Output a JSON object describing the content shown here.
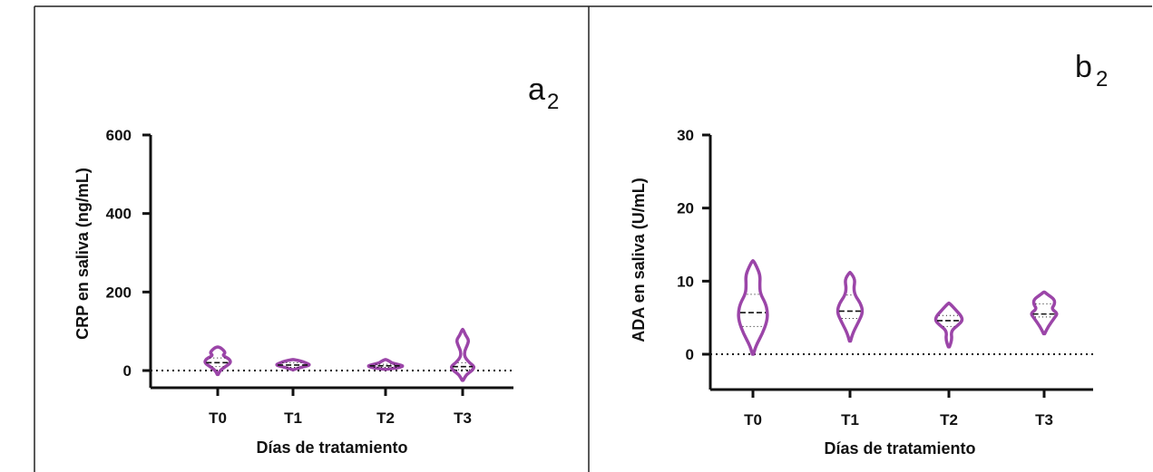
{
  "colors": {
    "violin": "#9b45a8",
    "axis": "#111111",
    "frame": "#222222"
  },
  "chart_data": [
    {
      "type": "violin",
      "panel_label": "a",
      "panel_label_sub": "2",
      "xlabel": "Días de tratamiento",
      "ylabel": "CRP en saliva (ng/mL)",
      "ylim": [
        -50,
        600
      ],
      "yticks": [
        0,
        200,
        400,
        600
      ],
      "ytick_labels": [
        "0",
        "200",
        "400",
        "600"
      ],
      "zero_reference_line": true,
      "categories": [
        "T0",
        "T1",
        "T2",
        "T3"
      ],
      "series": [
        {
          "category": "T0",
          "ymin": -10,
          "ymax": 60,
          "q1": 10,
          "median": 20,
          "q3": 32,
          "profile": [
            [
              -10,
              1
            ],
            [
              0,
              5
            ],
            [
              10,
              16
            ],
            [
              20,
              28
            ],
            [
              30,
              24
            ],
            [
              38,
              10
            ],
            [
              45,
              16
            ],
            [
              52,
              12
            ],
            [
              58,
              6
            ],
            [
              60,
              1
            ]
          ]
        },
        {
          "category": "T1",
          "ymin": 2,
          "ymax": 28,
          "q1": 8,
          "median": 14,
          "q3": 20,
          "profile": [
            [
              2,
              1
            ],
            [
              6,
              10
            ],
            [
              10,
              24
            ],
            [
              14,
              36
            ],
            [
              18,
              30
            ],
            [
              22,
              22
            ],
            [
              26,
              10
            ],
            [
              28,
              1
            ]
          ]
        },
        {
          "category": "T2",
          "ymin": 3,
          "ymax": 28,
          "q1": 8,
          "median": 12,
          "q3": 16,
          "profile": [
            [
              3,
              1
            ],
            [
              6,
              20
            ],
            [
              9,
              33
            ],
            [
              12,
              37
            ],
            [
              15,
              28
            ],
            [
              19,
              14
            ],
            [
              24,
              8
            ],
            [
              28,
              1
            ]
          ]
        },
        {
          "category": "T3",
          "ymin": -25,
          "ymax": 105,
          "q1": 2,
          "median": 10,
          "q3": 20,
          "profile": [
            [
              -25,
              1
            ],
            [
              -10,
              8
            ],
            [
              0,
              20
            ],
            [
              10,
              25
            ],
            [
              20,
              14
            ],
            [
              35,
              4
            ],
            [
              50,
              4
            ],
            [
              65,
              10
            ],
            [
              78,
              13
            ],
            [
              90,
              6
            ],
            [
              105,
              1
            ]
          ]
        }
      ]
    },
    {
      "type": "violin",
      "panel_label": "b",
      "panel_label_sub": "2",
      "xlabel": "Días de tratamiento",
      "ylabel": "ADA en saliva (U/mL)",
      "ylim": [
        -5,
        30
      ],
      "yticks": [
        0,
        10,
        20,
        30
      ],
      "ytick_labels": [
        "0",
        "10",
        "20",
        "30"
      ],
      "zero_reference_line": true,
      "categories": [
        "T0",
        "T1",
        "T2",
        "T3"
      ],
      "series": [
        {
          "category": "T0",
          "ymin": 0,
          "ymax": 12.8,
          "q1": 3.8,
          "median": 5.7,
          "q3": 8.2,
          "profile": [
            [
              0,
              1
            ],
            [
              1.2,
              6
            ],
            [
              2.8,
              18
            ],
            [
              4.5,
              27
            ],
            [
              5.8,
              28
            ],
            [
              7,
              24
            ],
            [
              8.3,
              14
            ],
            [
              9.5,
              13
            ],
            [
              10.8,
              14
            ],
            [
              12,
              7
            ],
            [
              12.8,
              1
            ]
          ]
        },
        {
          "category": "T1",
          "ymin": 1.8,
          "ymax": 11.2,
          "q1": 4.9,
          "median": 5.9,
          "q3": 8.1,
          "profile": [
            [
              1.8,
              1
            ],
            [
              3,
              6
            ],
            [
              4.5,
              17
            ],
            [
              5.8,
              25
            ],
            [
              7,
              20
            ],
            [
              8,
              10
            ],
            [
              9,
              7
            ],
            [
              10.2,
              10
            ],
            [
              11.2,
              1
            ]
          ]
        },
        {
          "category": "T2",
          "ymin": 1.0,
          "ymax": 7.0,
          "q1": 3.8,
          "median": 4.6,
          "q3": 5.3,
          "profile": [
            [
              1,
              1
            ],
            [
              2,
              6
            ],
            [
              3.2,
              4
            ],
            [
              4,
              18
            ],
            [
              4.6,
              26
            ],
            [
              5.2,
              24
            ],
            [
              6,
              14
            ],
            [
              7,
              1
            ]
          ]
        },
        {
          "category": "T3",
          "ymin": 2.8,
          "ymax": 8.5,
          "q1": 5.1,
          "median": 5.5,
          "q3": 6.9,
          "profile": [
            [
              2.8,
              1
            ],
            [
              3.8,
              8
            ],
            [
              5,
              20
            ],
            [
              5.6,
              26
            ],
            [
              6.2,
              14
            ],
            [
              6.8,
              20
            ],
            [
              7.5,
              20
            ],
            [
              8.2,
              6
            ],
            [
              8.5,
              1
            ]
          ]
        }
      ]
    }
  ]
}
